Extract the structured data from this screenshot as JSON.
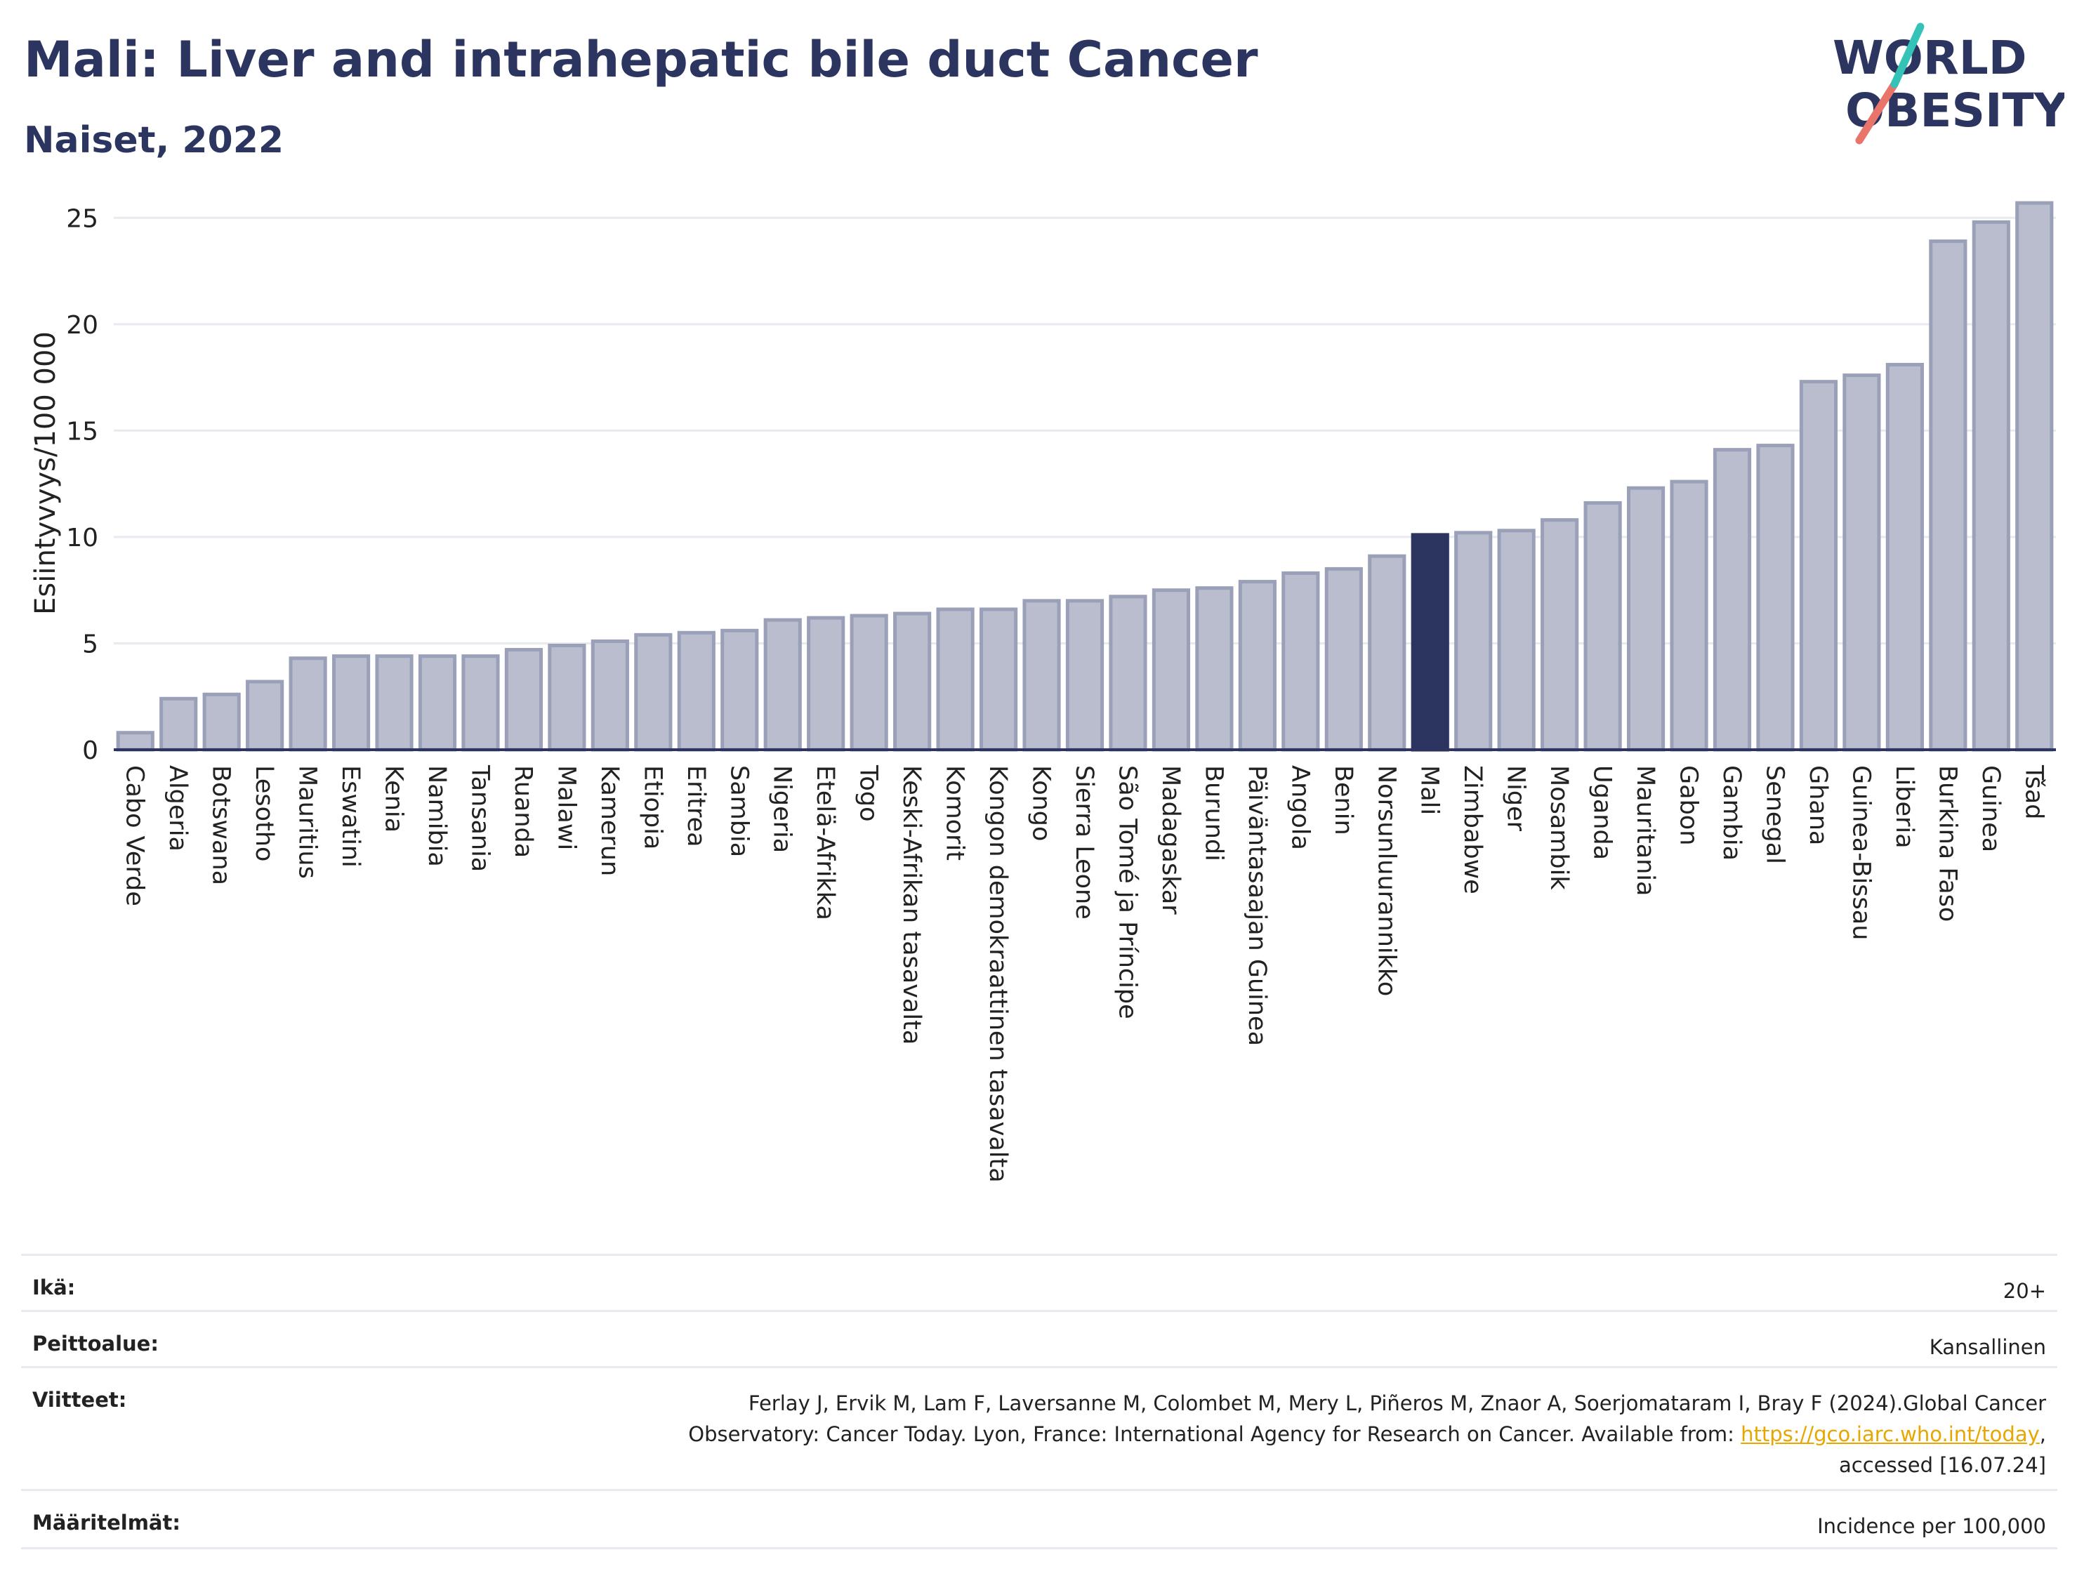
{
  "header": {
    "title": "Mali: Liver and intrahepatic bile duct Cancer",
    "subtitle": "Naiset, 2022"
  },
  "logo": {
    "line1": "WORLD",
    "line2": "OBESITY"
  },
  "colors": {
    "bar": "#b9bdcd",
    "bar_edge": "#9aa0b8",
    "highlight": "#2b3560",
    "grid": "#e9eaf0",
    "axis": "#2b3560"
  },
  "chart_data": {
    "type": "bar",
    "ylabel": "Esiintyvyys/100 000",
    "xlabel": "",
    "ylim": [
      0,
      26
    ],
    "yticks": [
      0,
      5,
      10,
      15,
      20,
      25
    ],
    "grid": true,
    "highlight": "Mali",
    "categories": [
      "Cabo Verde",
      "Algeria",
      "Botswana",
      "Lesotho",
      "Mauritius",
      "Eswatini",
      "Kenia",
      "Namibia",
      "Tansania",
      "Ruanda",
      "Malawi",
      "Kamerun",
      "Etiopia",
      "Eritrea",
      "Sambia",
      "Nigeria",
      "Etelä-Afrikka",
      "Togo",
      "Keski-Afrikan tasavalta",
      "Komorit",
      "Kongon demokraattinen tasavalta",
      "Kongo",
      "Sierra Leone",
      "São Tomé ja Príncipe",
      "Madagaskar",
      "Burundi",
      "Päiväntasaajan Guinea",
      "Angola",
      "Benin",
      "Norsunluurannikko",
      "Mali",
      "Zimbabwe",
      "Niger",
      "Mosambik",
      "Uganda",
      "Mauritania",
      "Gabon",
      "Gambia",
      "Senegal",
      "Ghana",
      "Guinea-Bissau",
      "Liberia",
      "Burkina Faso",
      "Guinea",
      "Tšad"
    ],
    "values": [
      0.8,
      2.4,
      2.6,
      3.2,
      4.3,
      4.4,
      4.4,
      4.4,
      4.4,
      4.7,
      4.9,
      5.1,
      5.4,
      5.5,
      5.6,
      6.1,
      6.2,
      6.3,
      6.4,
      6.6,
      6.6,
      7.0,
      7.0,
      7.2,
      7.5,
      7.6,
      7.9,
      8.3,
      8.5,
      9.1,
      10.1,
      10.2,
      10.3,
      10.8,
      11.6,
      12.3,
      12.6,
      14.1,
      14.3,
      17.3,
      17.6,
      18.1,
      23.9,
      24.8,
      25.7
    ]
  },
  "meta": {
    "age_label": "Ikä:",
    "age_value": "20+",
    "coverage_label": "Peittoalue:",
    "coverage_value": "Kansallinen",
    "refs_label": "Viitteet:",
    "refs_line1": "Ferlay J, Ervik M, Lam F, Laversanne M, Colombet M, Mery L, Piñeros M, Znaor A, Soerjomataram I, Bray F (2024).Global Cancer",
    "refs_line2_pre": "Observatory: Cancer Today. Lyon, France: International Agency for Research on Cancer. Available from: ",
    "refs_link": "https://gco.iarc.who.int/today",
    "refs_line2_post": ",",
    "refs_line3": "accessed [16.07.24]",
    "defs_label": "Määritelmät:",
    "defs_value": "Incidence per 100,000"
  }
}
